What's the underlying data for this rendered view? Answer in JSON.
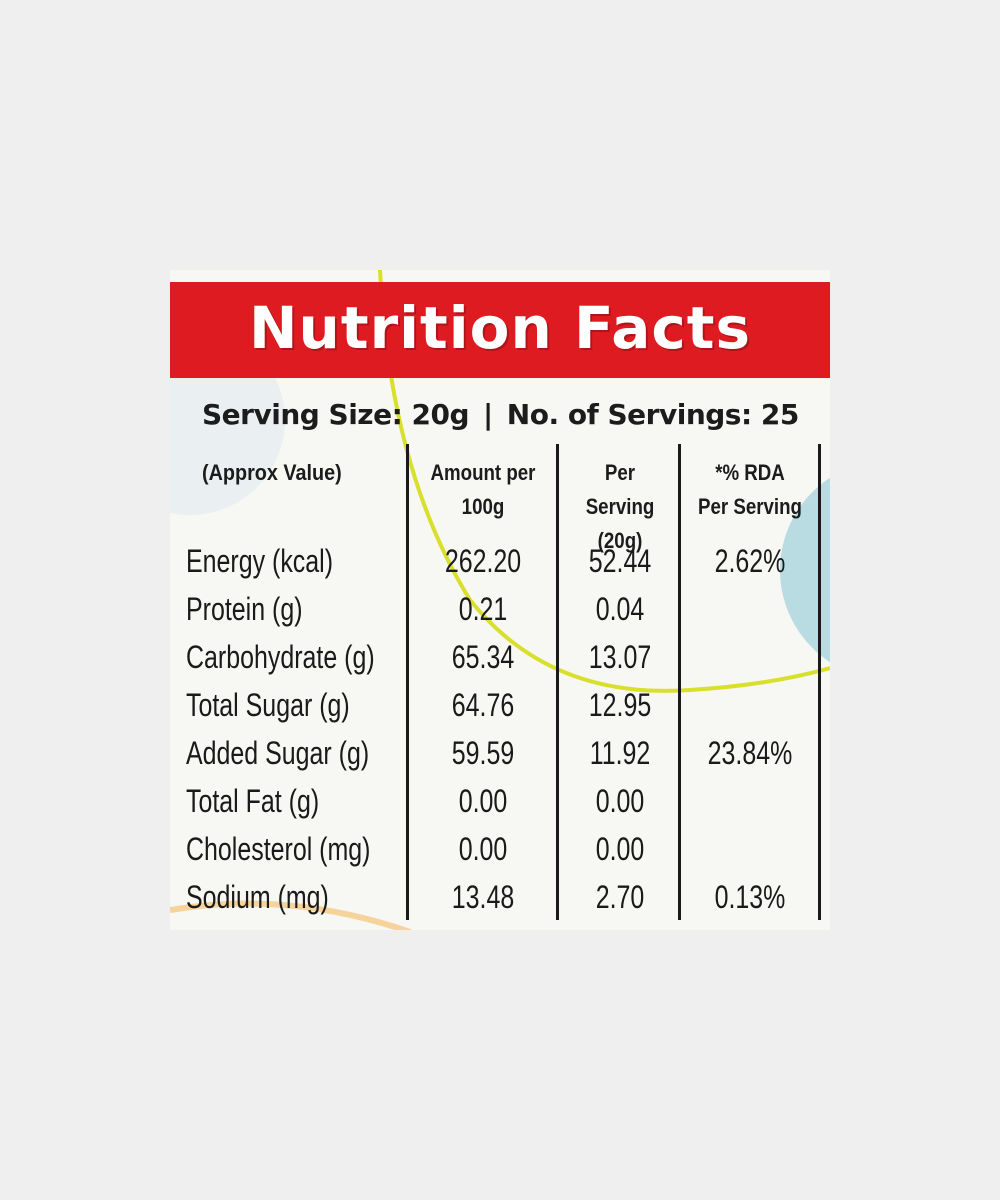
{
  "label": {
    "title": "Nutrition Facts",
    "serving_size": "Serving Size: 20g",
    "separator": "|",
    "servings": "No. of Servings: 25",
    "colors": {
      "header_red": "#df1b22",
      "header_text": "#ffffff",
      "ink": "#1a1a1a",
      "accent_yellow": "#d8e02c",
      "accent_blue": "#b9dce3"
    },
    "columns": {
      "approx": "(Approx Value)",
      "per100_line1": "Amount per",
      "per100_line2": "100g",
      "perserving_line1": "Per Serving",
      "perserving_line2": "(20g)",
      "rda_line1": "*% RDA",
      "rda_line2": "Per Serving"
    },
    "rows": [
      {
        "name": "Energy (kcal)",
        "per100": "262.20",
        "perserving": "52.44",
        "rda": "2.62%"
      },
      {
        "name": "Protein (g)",
        "per100": "0.21",
        "perserving": "0.04",
        "rda": ""
      },
      {
        "name": "Carbohydrate (g)",
        "per100": "65.34",
        "perserving": "13.07",
        "rda": ""
      },
      {
        "name": "Total Sugar (g)",
        "per100": "64.76",
        "perserving": "12.95",
        "rda": ""
      },
      {
        "name": "Added Sugar (g)",
        "per100": "59.59",
        "perserving": "11.92",
        "rda": "23.84%"
      },
      {
        "name": "Total Fat (g)",
        "per100": "0.00",
        "perserving": "0.00",
        "rda": ""
      },
      {
        "name": "Cholesterol (mg)",
        "per100": "0.00",
        "perserving": "0.00",
        "rda": ""
      },
      {
        "name": "Sodium (mg)",
        "per100": "13.48",
        "perserving": "2.70",
        "rda": "0.13%"
      }
    ]
  }
}
